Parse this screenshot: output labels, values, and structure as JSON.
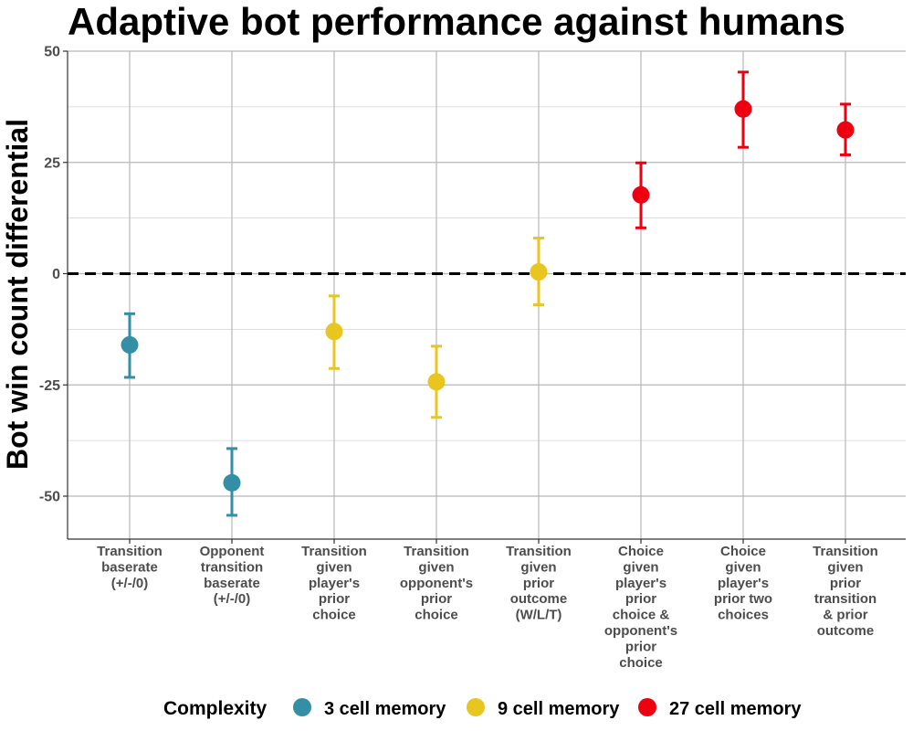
{
  "chart_data": {
    "type": "scatter",
    "title": "Adaptive bot performance against humans",
    "xlabel": "",
    "ylabel": "Bot win count differential",
    "ylim": [
      -59,
      50
    ],
    "yticks": [
      -50,
      -25,
      0,
      25,
      50
    ],
    "ytick_labels": [
      "-50",
      "-25",
      "0",
      "25",
      "50"
    ],
    "grid": true,
    "reference_line": {
      "y": 0,
      "style": "dashed"
    },
    "categories": [
      [
        "Transition",
        "baserate",
        "(+/-/0)"
      ],
      [
        "Opponent",
        "transition",
        "baserate",
        "(+/-/0)"
      ],
      [
        "Transition",
        "given",
        "player's",
        "prior",
        "choice"
      ],
      [
        "Transition",
        "given",
        "opponent's",
        "prior",
        "choice"
      ],
      [
        "Transition",
        "given",
        "prior",
        "outcome",
        "(W/L/T)"
      ],
      [
        "Choice",
        "given",
        "player's",
        "prior",
        "choice &",
        "opponent's",
        "prior",
        "choice"
      ],
      [
        "Choice",
        "given",
        "player's",
        "prior two",
        "choices"
      ],
      [
        "Transition",
        "given",
        "prior",
        "transition",
        "& prior",
        "outcome"
      ]
    ],
    "points": [
      {
        "value": -16,
        "lower": -23.3,
        "upper": -9,
        "group": 0
      },
      {
        "value": -47,
        "lower": -54.3,
        "upper": -39.3,
        "group": 0
      },
      {
        "value": -13,
        "lower": -21.3,
        "upper": -5,
        "group": 1
      },
      {
        "value": -24.3,
        "lower": -32.3,
        "upper": -16.3,
        "group": 1
      },
      {
        "value": 0.4,
        "lower": -7,
        "upper": 8,
        "group": 1
      },
      {
        "value": 17.7,
        "lower": 10.3,
        "upper": 24.9,
        "group": 2
      },
      {
        "value": 37,
        "lower": 28.4,
        "upper": 45.3,
        "group": 2
      },
      {
        "value": 32.3,
        "lower": 26.7,
        "upper": 38.1,
        "group": 2
      }
    ],
    "legend": {
      "title": "Complexity",
      "placement": "bottom",
      "entries": [
        {
          "label": "3 cell memory",
          "color": "#338fa6"
        },
        {
          "label": "9 cell memory",
          "color": "#e8c51f"
        },
        {
          "label": "27 cell memory",
          "color": "#ef0010"
        }
      ]
    }
  }
}
